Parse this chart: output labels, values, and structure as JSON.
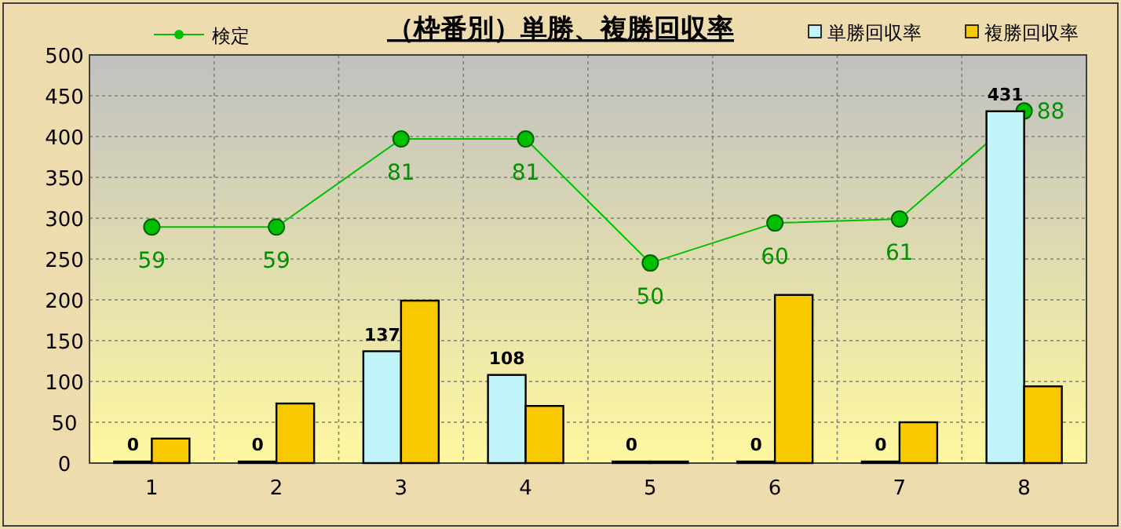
{
  "chart_data": {
    "type": "bar",
    "title": "（枠番別）単勝、複勝回収率",
    "categories": [
      "1",
      "2",
      "3",
      "4",
      "5",
      "6",
      "7",
      "8"
    ],
    "ylim": [
      0,
      500
    ],
    "yticks": [
      0,
      50,
      100,
      150,
      200,
      250,
      300,
      350,
      400,
      450,
      500
    ],
    "y2lim": [
      0,
      102
    ],
    "tick_labels": "xy",
    "grid": true,
    "legend": "top",
    "series": [
      {
        "name": "検定",
        "type": "line",
        "axis": "y2",
        "color": "#00c000",
        "marker": "circle",
        "values": [
          59,
          59,
          81,
          81,
          50,
          60,
          61,
          88
        ],
        "value_labels": [
          "59",
          "59",
          "81",
          "81",
          "50",
          "60",
          "61",
          "88"
        ]
      },
      {
        "name": "単勝回収率",
        "color": "#c0f4f8",
        "values": [
          0,
          0,
          137,
          108,
          0,
          0,
          0,
          431
        ],
        "value_labels": [
          "0",
          "0",
          "137",
          "108",
          "0",
          "0",
          "0",
          "431"
        ]
      },
      {
        "name": "複勝回収率",
        "color": "#f8c800",
        "values": [
          30,
          73,
          199,
          70,
          0,
          206,
          50,
          94
        ]
      }
    ]
  }
}
